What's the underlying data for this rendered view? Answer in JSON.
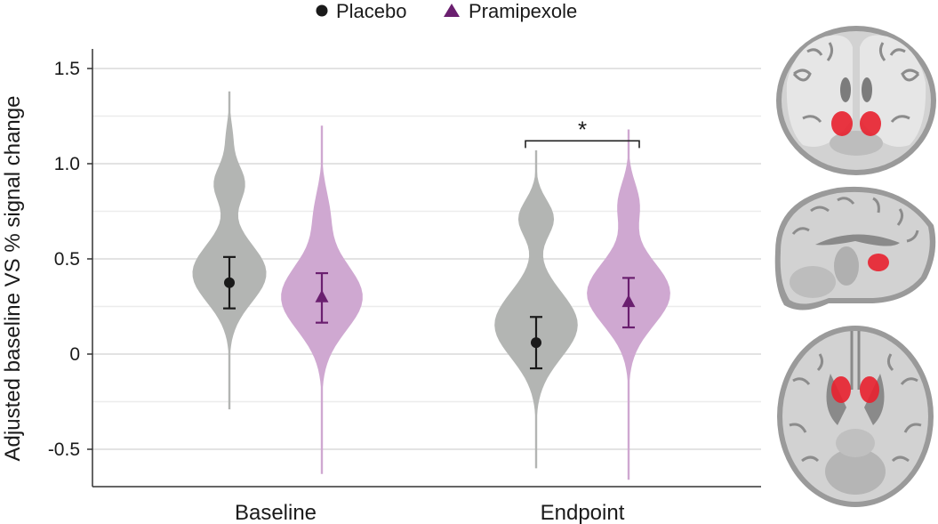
{
  "chart_data": {
    "type": "violin",
    "ylabel": "Adjusted baseline VS % signal change",
    "ylim": [
      -0.7,
      1.6
    ],
    "yticks": [
      1.5,
      1.0,
      0.5,
      0,
      -0.5
    ],
    "ytick_labels": [
      "1.5",
      "1.0",
      "0.5",
      "0",
      "-0.5"
    ],
    "minor_gridlines": [
      1.25,
      0.75,
      0.25,
      -0.25
    ],
    "grid": true,
    "categories": [
      "Baseline",
      "Endpoint"
    ],
    "legend_position": "top-center",
    "colors": {
      "placebo_violin": "#b3b5b3",
      "pramipexole_violin": "#cfa8d1",
      "placebo_marker": "#1a1a1a",
      "pramipexole_marker": "#6a1f6f",
      "grid": "#e3e3e3",
      "brain_highlight": "#e8202e"
    },
    "series": [
      {
        "name": "Placebo",
        "marker": "circle",
        "means": [
          0.375,
          0.06
        ],
        "error_low": [
          0.24,
          -0.075
        ],
        "error_high": [
          0.51,
          0.195
        ],
        "violin_range": [
          [
            -0.29,
            1.38
          ],
          [
            -0.6,
            1.07
          ]
        ]
      },
      {
        "name": "Pramipexole",
        "marker": "triangle",
        "means": [
          0.3,
          0.275
        ],
        "error_low": [
          0.165,
          0.14
        ],
        "error_high": [
          0.425,
          0.4
        ],
        "violin_range": [
          [
            -0.63,
            1.2
          ],
          [
            -0.66,
            1.18
          ]
        ]
      }
    ],
    "annotations": [
      {
        "text": "*",
        "between": [
          "Placebo",
          "Pramipexole"
        ],
        "category": "Endpoint",
        "y": 1.12
      }
    ]
  },
  "legend": {
    "placebo_label": "Placebo",
    "pramipexole_label": "Pramipexole"
  },
  "brain_images": [
    "coronal-slice",
    "sagittal-slice",
    "axial-slice"
  ]
}
